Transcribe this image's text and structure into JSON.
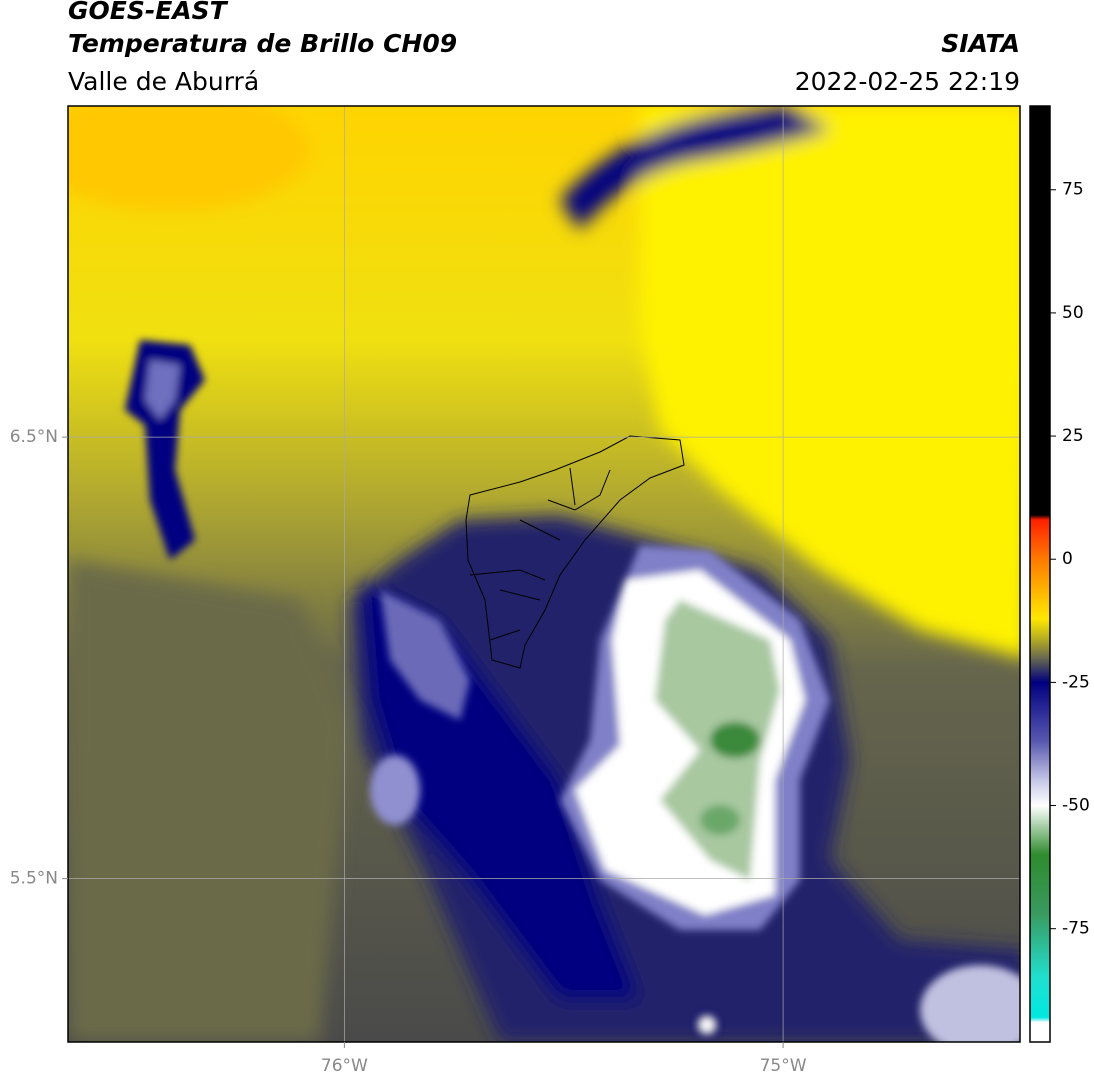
{
  "header": {
    "title": "GOES-EAST",
    "subtitle": "Temperatura de Brillo CH09",
    "region": "Valle de Aburrá",
    "source": "SIATA",
    "datetime": "2022-02-25 22:19"
  },
  "map": {
    "lonlim": [
      -76.63,
      -74.46
    ],
    "latlim": [
      5.13,
      7.25
    ],
    "lonticks": [
      {
        "value": -76,
        "label": "76°W"
      },
      {
        "value": -75,
        "label": "75°W"
      }
    ],
    "latticks": [
      {
        "value": 6.5,
        "label": "6.5°N"
      },
      {
        "value": 5.5,
        "label": "5.5°N"
      }
    ],
    "grid": true
  },
  "colorbar": {
    "lim": [
      -98,
      92
    ],
    "ticks": [
      75,
      50,
      25,
      0,
      -25,
      -50,
      -75
    ],
    "stops": [
      {
        "value": 92,
        "color": "#000000"
      },
      {
        "value": 9,
        "color": "#000000"
      },
      {
        "value": 8,
        "color": "#ff2000"
      },
      {
        "value": 0,
        "color": "#ff7a00"
      },
      {
        "value": -12,
        "color": "#ffe800"
      },
      {
        "value": -16,
        "color": "#b8b020"
      },
      {
        "value": -20,
        "color": "#6a6a50"
      },
      {
        "value": -25,
        "color": "#000080"
      },
      {
        "value": -37,
        "color": "#5858b0"
      },
      {
        "value": -45,
        "color": "#c8c8e8"
      },
      {
        "value": -50,
        "color": "#ffffff"
      },
      {
        "value": -60,
        "color": "#2e8b2e"
      },
      {
        "value": -72,
        "color": "#3a9a60"
      },
      {
        "value": -85,
        "color": "#20e0d0"
      },
      {
        "value": -93,
        "color": "#00e8e0"
      },
      {
        "value": -94,
        "color": "#ffffff"
      },
      {
        "value": -98,
        "color": "#ffffff"
      }
    ]
  }
}
